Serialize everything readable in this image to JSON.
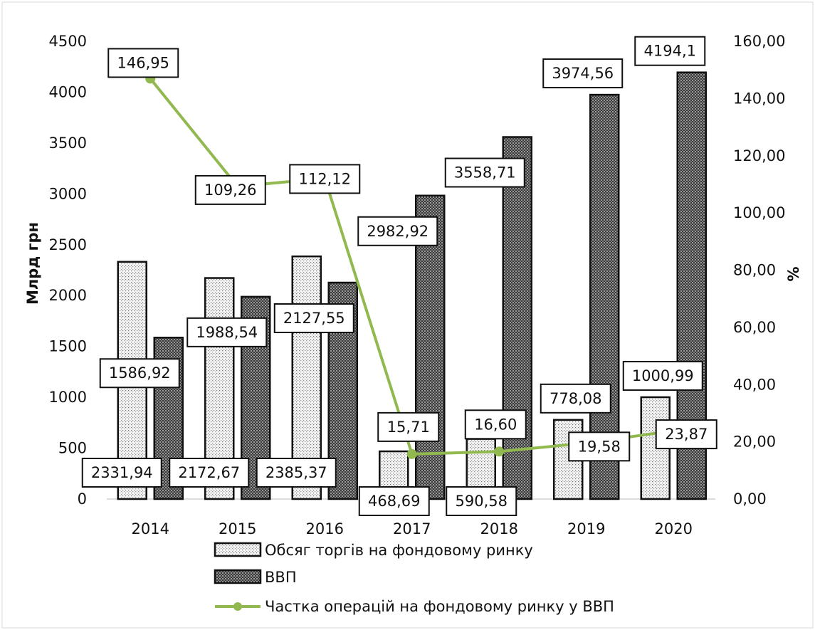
{
  "chart_data": {
    "type": "bar",
    "categories": [
      "2014",
      "2015",
      "2016",
      "2017",
      "2018",
      "2019",
      "2020"
    ],
    "ylabel": "Млрд грн",
    "y2label": "%",
    "ylim": [
      0,
      4500
    ],
    "y2lim": [
      0,
      160
    ],
    "yticks": [
      "0",
      "500",
      "1000",
      "1500",
      "2000",
      "2500",
      "3000",
      "3500",
      "4000",
      "4500"
    ],
    "y2ticks": [
      "0,00",
      "20,00",
      "40,00",
      "60,00",
      "80,00",
      "100,00",
      "120,00",
      "140,00",
      "160,00"
    ],
    "grid": false,
    "legend_position": "bottom",
    "series": [
      {
        "name": "Обсяг торгів на фондовому ринку",
        "kind": "bar",
        "axis": "left",
        "pattern": "light-dotted",
        "values": [
          2331.94,
          2172.67,
          2385.37,
          468.69,
          590.58,
          778.08,
          1000.99
        ],
        "labels": [
          "2331,94",
          "2172,67",
          "2385,37",
          "468,69",
          "590,58",
          "778,08",
          "1000,99"
        ]
      },
      {
        "name": "ВВП",
        "kind": "bar",
        "axis": "left",
        "pattern": "dark-crosshatch",
        "values": [
          1586.92,
          1988.54,
          2127.55,
          2982.92,
          3558.71,
          3974.56,
          4194.1
        ],
        "labels": [
          "1586,92",
          "1988,54",
          "2127,55",
          "2982,92",
          "3558,71",
          "3974,56",
          "4194,1"
        ]
      },
      {
        "name": "Частка операцій на фондовому ринку у ВВП",
        "kind": "line",
        "axis": "right",
        "color": "#92b94f",
        "values": [
          146.95,
          109.26,
          112.12,
          15.71,
          16.6,
          19.58,
          23.87
        ],
        "labels": [
          "146,95",
          "109,26",
          "112,12",
          "15,71",
          "16,60",
          "19,58",
          "23,87"
        ]
      }
    ]
  }
}
